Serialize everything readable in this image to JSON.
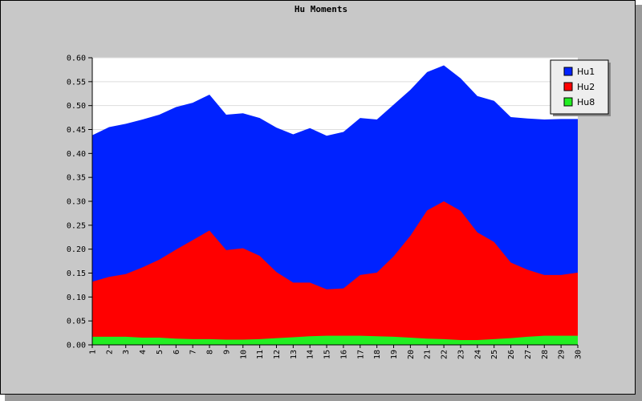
{
  "chart_data": {
    "type": "area",
    "title": "Hu Moments",
    "xlabel": "",
    "ylabel": "",
    "ylim": [
      0,
      0.6
    ],
    "yticks": [
      "0.00",
      "0.05",
      "0.10",
      "0.15",
      "0.20",
      "0.25",
      "0.30",
      "0.35",
      "0.40",
      "0.45",
      "0.50",
      "0.55",
      "0.60"
    ],
    "categories": [
      "1",
      "2",
      "3",
      "4",
      "5",
      "6",
      "7",
      "8",
      "9",
      "10",
      "11",
      "12",
      "13",
      "14",
      "15",
      "16",
      "17",
      "18",
      "19",
      "20",
      "21",
      "22",
      "23",
      "24",
      "25",
      "26",
      "27",
      "28",
      "29",
      "30"
    ],
    "grid": true,
    "legend_position": "top-right",
    "series": [
      {
        "name": "Hu1",
        "color": "#0022ff",
        "values": [
          0.438,
          0.455,
          0.462,
          0.471,
          0.481,
          0.497,
          0.506,
          0.523,
          0.481,
          0.484,
          0.474,
          0.454,
          0.44,
          0.453,
          0.437,
          0.445,
          0.474,
          0.471,
          0.502,
          0.533,
          0.57,
          0.584,
          0.557,
          0.52,
          0.51,
          0.476,
          0.473,
          0.471,
          0.472,
          0.472
        ]
      },
      {
        "name": "Hu2",
        "color": "#ff0000",
        "values": [
          0.132,
          0.142,
          0.148,
          0.162,
          0.178,
          0.199,
          0.219,
          0.239,
          0.198,
          0.202,
          0.186,
          0.152,
          0.13,
          0.13,
          0.116,
          0.118,
          0.146,
          0.151,
          0.185,
          0.228,
          0.281,
          0.3,
          0.28,
          0.235,
          0.215,
          0.172,
          0.157,
          0.146,
          0.146,
          0.151
        ]
      },
      {
        "name": "Hu8",
        "color": "#22ee22",
        "values": [
          0.017,
          0.017,
          0.017,
          0.015,
          0.015,
          0.013,
          0.012,
          0.012,
          0.011,
          0.011,
          0.012,
          0.014,
          0.016,
          0.018,
          0.019,
          0.019,
          0.019,
          0.018,
          0.017,
          0.015,
          0.013,
          0.012,
          0.01,
          0.01,
          0.012,
          0.014,
          0.017,
          0.019,
          0.019,
          0.019
        ]
      }
    ]
  }
}
